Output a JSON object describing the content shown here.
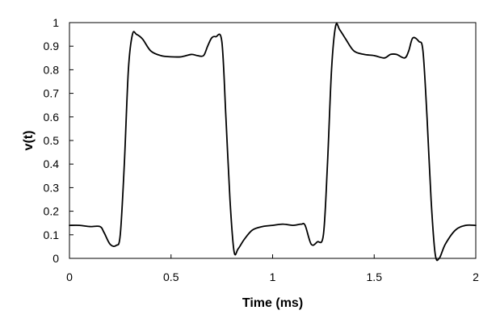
{
  "chart_data": {
    "type": "line",
    "title": "",
    "xlabel": "Time (ms)",
    "ylabel": "v(t)",
    "xlim": [
      0,
      2
    ],
    "ylim": [
      0,
      1
    ],
    "x_ticks": [
      0,
      0.5,
      1,
      1.5,
      2
    ],
    "x_tick_labels": [
      "0",
      "0.5",
      "1",
      "1.5",
      "2"
    ],
    "y_ticks": [
      0,
      0.1,
      0.2,
      0.3,
      0.4,
      0.5,
      0.6,
      0.7,
      0.8,
      0.9,
      1
    ],
    "y_tick_labels": [
      "0",
      "0.1",
      "0.2",
      "0.3",
      "0.4",
      "0.5",
      "0.6",
      "0.7",
      "0.8",
      "0.9",
      "1"
    ],
    "grid": false,
    "legend": "none",
    "line_color": "#000000",
    "series": [
      {
        "x": [
          0,
          0.05,
          0.1,
          0.15,
          0.17,
          0.2,
          0.23,
          0.25,
          0.27,
          0.29,
          0.31,
          0.33,
          0.36,
          0.4,
          0.45,
          0.5,
          0.55,
          0.6,
          0.63,
          0.66,
          0.68,
          0.7,
          0.72,
          0.75,
          0.77,
          0.79,
          0.81,
          0.83,
          0.86,
          0.9,
          0.95,
          1.0,
          1.05,
          1.1,
          1.14,
          1.16,
          1.19,
          1.22,
          1.25,
          1.27,
          1.29,
          1.31,
          1.33,
          1.36,
          1.4,
          1.45,
          1.5,
          1.55,
          1.58,
          1.61,
          1.65,
          1.67,
          1.69,
          1.72,
          1.74,
          1.76,
          1.78,
          1.8,
          1.82,
          1.85,
          1.9,
          1.95,
          2.0
        ],
        "y": [
          0.14,
          0.14,
          0.135,
          0.135,
          0.11,
          0.06,
          0.055,
          0.1,
          0.4,
          0.8,
          0.95,
          0.95,
          0.93,
          0.88,
          0.86,
          0.855,
          0.855,
          0.865,
          0.86,
          0.86,
          0.9,
          0.935,
          0.94,
          0.92,
          0.6,
          0.25,
          0.03,
          0.04,
          0.08,
          0.12,
          0.135,
          0.14,
          0.145,
          0.14,
          0.145,
          0.14,
          0.06,
          0.07,
          0.1,
          0.4,
          0.8,
          0.985,
          0.97,
          0.93,
          0.88,
          0.865,
          0.86,
          0.85,
          0.865,
          0.865,
          0.85,
          0.88,
          0.935,
          0.92,
          0.88,
          0.6,
          0.25,
          0.02,
          0.0,
          0.06,
          0.12,
          0.14,
          0.14
        ]
      }
    ]
  }
}
